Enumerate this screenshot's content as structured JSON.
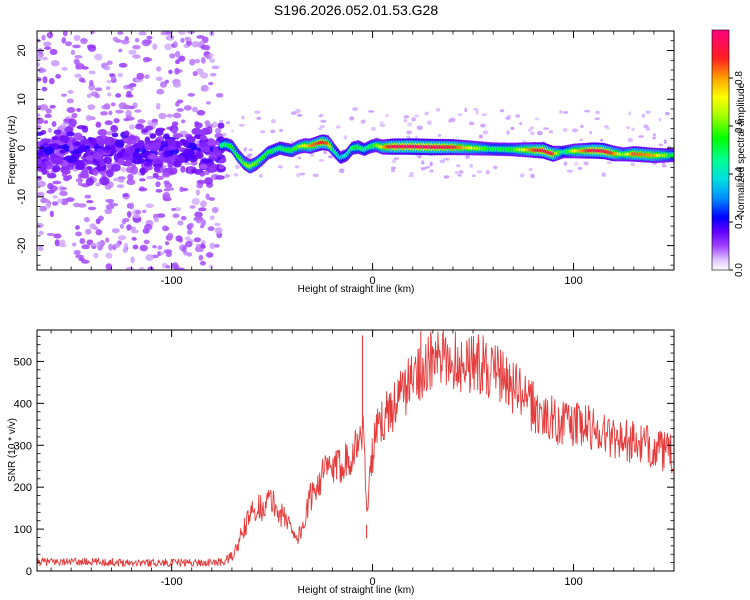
{
  "figure": {
    "title": "S196.2026.052.01.53.G28",
    "colors": {
      "signal": "#e53b3b",
      "frame": "#000000",
      "background": "#ffffff"
    }
  },
  "chart_data": [
    {
      "type": "heatmap",
      "panel": "top",
      "title": "",
      "xlabel": "Height of straight line (km)",
      "ylabel": "Frequency (Hz)",
      "xlim": [
        -167,
        150
      ],
      "ylim": [
        -25,
        24
      ],
      "x_ticks": [
        -100,
        0,
        100
      ],
      "x_tick_labels": [
        "-100",
        "0",
        "100"
      ],
      "y_ticks": [
        -20,
        -10,
        0,
        10,
        20
      ],
      "y_tick_labels": [
        "-20",
        "-10",
        "0",
        "10",
        "20"
      ],
      "colorbar": {
        "label": "Normalized spectral amplitude",
        "range": [
          0,
          1
        ],
        "ticks": [
          0.0,
          0.2,
          0.4,
          0.6,
          0.8
        ],
        "tick_labels": [
          "0.0",
          "0.2",
          "0.4",
          "0.6",
          "0.8"
        ],
        "colors": [
          "#ffffff",
          "#c080ff",
          "#8000ff",
          "#0000ff",
          "#00c0ff",
          "#00ffc0",
          "#00ff00",
          "#c0ff00",
          "#ffff00",
          "#ffa000",
          "#ff2020",
          "#ff0080"
        ]
      },
      "noise_region_x": [
        -167,
        -76
      ],
      "noise_band_hz": [
        -8,
        6
      ],
      "ridge": {
        "x": [
          -75,
          -73,
          -70,
          -67,
          -64,
          -61,
          -58,
          -55,
          -52,
          -49,
          -46,
          -43,
          -40,
          -37,
          -34,
          -31,
          -28,
          -25,
          -22,
          -19,
          -16,
          -13,
          -10,
          -7,
          -4,
          -1,
          2,
          5,
          10,
          20,
          30,
          40,
          50,
          60,
          70,
          80,
          85,
          90,
          95,
          100,
          110,
          115,
          120,
          125,
          130,
          140,
          150
        ],
        "freq": [
          0.5,
          0.8,
          0.3,
          -1.5,
          -3.0,
          -3.8,
          -3.2,
          -2.2,
          -1.0,
          -0.5,
          0.0,
          -0.3,
          -0.5,
          0.2,
          0.5,
          0.4,
          0.8,
          1.2,
          1.0,
          -0.5,
          -2.0,
          -1.5,
          0.0,
          0.2,
          -0.3,
          0.3,
          0.6,
          0.2,
          0.3,
          0.3,
          0.2,
          0.2,
          0.0,
          -0.2,
          -0.3,
          -0.4,
          -0.5,
          -1.2,
          -0.8,
          -0.6,
          -0.5,
          -0.6,
          -1.1,
          -1.3,
          -1.2,
          -1.5,
          -1.5
        ],
        "amplitude": [
          0.45,
          0.5,
          0.55,
          0.55,
          0.6,
          0.65,
          0.6,
          0.58,
          0.55,
          0.5,
          0.5,
          0.52,
          0.55,
          0.6,
          0.7,
          0.8,
          0.85,
          0.9,
          0.85,
          0.5,
          0.35,
          0.4,
          0.5,
          0.55,
          0.45,
          0.5,
          0.6,
          0.75,
          0.95,
          0.98,
          0.97,
          0.9,
          0.7,
          0.5,
          0.55,
          0.85,
          0.95,
          0.9,
          0.4,
          0.7,
          0.95,
          0.95,
          0.85,
          0.6,
          0.85,
          0.8,
          0.5
        ]
      }
    },
    {
      "type": "line",
      "panel": "bottom",
      "title": "",
      "xlabel": "Height of straight line (km)",
      "ylabel": "SNR (10 * v/v)",
      "xlim": [
        -167,
        150
      ],
      "ylim": [
        0,
        575
      ],
      "x_ticks": [
        -100,
        0,
        100
      ],
      "x_tick_labels": [
        "-100",
        "0",
        "100"
      ],
      "y_ticks": [
        0,
        100,
        200,
        300,
        400,
        500
      ],
      "y_tick_labels": [
        "0",
        "100",
        "200",
        "300",
        "400",
        "500"
      ],
      "series": [
        {
          "name": "SNR",
          "color": "#e53b3b",
          "x": [
            -167,
            -150,
            -130,
            -110,
            -90,
            -80,
            -74,
            -70,
            -67,
            -64,
            -61,
            -58,
            -55,
            -52,
            -49,
            -46,
            -43,
            -40,
            -37,
            -34,
            -31,
            -28,
            -25,
            -22,
            -19,
            -16,
            -13,
            -10,
            -8,
            -6,
            -5,
            -4,
            -3,
            -2,
            -1,
            0,
            2,
            5,
            8,
            11,
            14,
            17,
            20,
            24,
            28,
            32,
            36,
            40,
            45,
            50,
            55,
            60,
            65,
            70,
            75,
            80,
            85,
            90,
            95,
            100,
            105,
            110,
            115,
            120,
            125,
            130,
            135,
            140,
            145,
            150
          ],
          "values": [
            22,
            22,
            21,
            20,
            20,
            20,
            22,
            35,
            60,
            100,
            130,
            155,
            150,
            170,
            160,
            135,
            125,
            100,
            80,
            115,
            175,
            205,
            230,
            245,
            240,
            255,
            270,
            280,
            300,
            320,
            340,
            320,
            110,
            210,
            240,
            280,
            330,
            360,
            380,
            400,
            420,
            440,
            460,
            480,
            495,
            505,
            500,
            505,
            495,
            500,
            490,
            475,
            460,
            440,
            415,
            390,
            370,
            360,
            355,
            350,
            345,
            340,
            330,
            320,
            315,
            305,
            300,
            295,
            285,
            275
          ],
          "spikes": [
            {
              "x": -5,
              "y": 562
            },
            {
              "x": -3,
              "y": 78
            },
            {
              "x": 24,
              "y": 572
            }
          ]
        }
      ]
    }
  ]
}
